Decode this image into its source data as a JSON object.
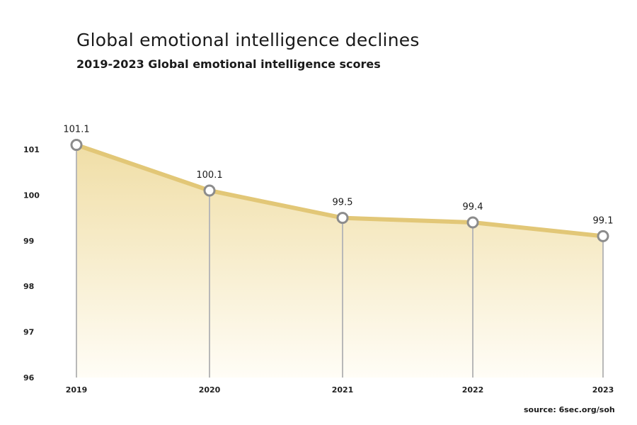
{
  "chart_data": {
    "type": "area",
    "title": "Global emotional intelligence declines",
    "subtitle": "2019-2023 Global emotional intelligence scores",
    "source": "source: 6sec.org/soh",
    "x": [
      "2019",
      "2020",
      "2021",
      "2022",
      "2023"
    ],
    "values": [
      101.1,
      100.1,
      99.5,
      99.4,
      99.1
    ],
    "data_labels": [
      "101.1",
      "100.1",
      "99.5",
      "99.4",
      "99.1"
    ],
    "y_ticks": [
      96,
      97,
      98,
      99,
      100,
      101
    ],
    "y_tick_labels": [
      "96",
      "97",
      "98",
      "99",
      "100",
      "101"
    ],
    "ylim": [
      96,
      101.1
    ],
    "grid": false,
    "colors": {
      "line": "#e2c777",
      "area_top": "#f0dea6",
      "area_bottom": "#fffdf6",
      "marker_fill": "#ffffff",
      "marker_stroke": "#8c8c8c",
      "dropline": "#b8b8b8"
    }
  }
}
